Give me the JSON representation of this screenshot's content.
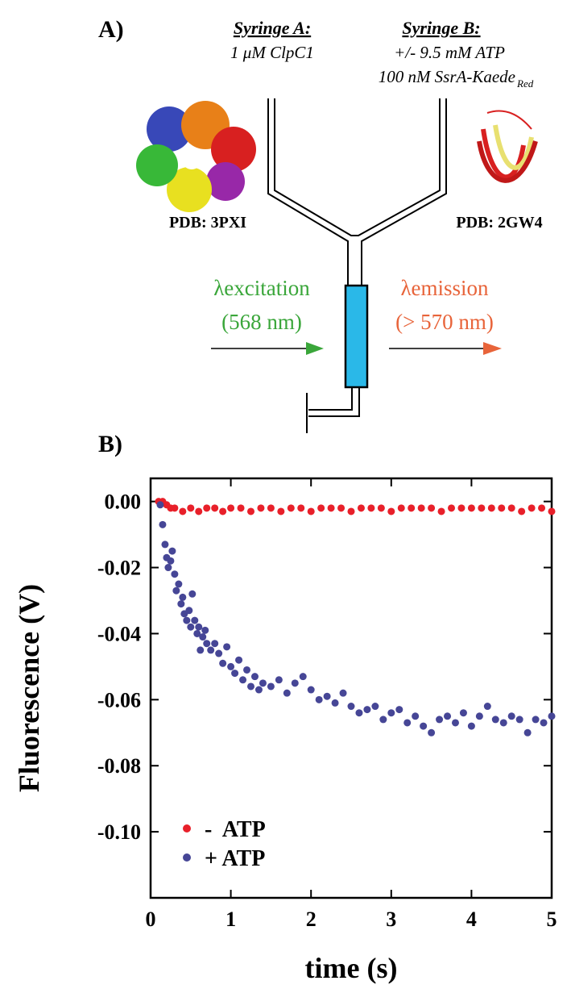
{
  "diagram": {
    "panel_a": "A)",
    "panel_b": "B)",
    "syringe_a": {
      "title": "Syringe A:",
      "line1": "1 μM ClpC1"
    },
    "syringe_b": {
      "title": "Syringe B:",
      "line1": "+/- 9.5 mM ATP",
      "line2": "100 nM SsrA-Kaede",
      "line2_sub": "Red"
    },
    "pdb_left": "PDB: 3PXI",
    "pdb_right": "PDB: 2GW4",
    "excitation": {
      "label": "λexcitation",
      "wavelength": "(568 nm)",
      "color": "#3aa63a"
    },
    "emission": {
      "label": "λemission",
      "wavelength": "(> 570 nm)",
      "color": "#e8643a"
    }
  },
  "chart_data": {
    "type": "scatter",
    "xlabel": "time (s)",
    "ylabel": "Fluorescence (V)",
    "xlim": [
      0,
      5
    ],
    "ylim": [
      -0.12,
      0.007
    ],
    "xticks": [
      0,
      1,
      2,
      3,
      4,
      5
    ],
    "yticks": [
      {
        "value": 0,
        "label": "0.00"
      },
      -0.02,
      -0.04,
      -0.06,
      -0.08,
      {
        "value": -0.1,
        "label": "-0.10"
      }
    ],
    "legend": "lower left",
    "series": [
      {
        "name": "-  ATP",
        "color": "#e8202a",
        "x": [
          0.1,
          0.15,
          0.2,
          0.25,
          0.3,
          0.4,
          0.5,
          0.6,
          0.7,
          0.8,
          0.9,
          1.0,
          1.125,
          1.25,
          1.375,
          1.5,
          1.625,
          1.75,
          1.875,
          2.0,
          2.125,
          2.25,
          2.375,
          2.5,
          2.625,
          2.75,
          2.875,
          3.0,
          3.125,
          3.25,
          3.375,
          3.5,
          3.625,
          3.75,
          3.875,
          4.0,
          4.125,
          4.25,
          4.375,
          4.5,
          4.625,
          4.75,
          4.875,
          5.0
        ],
        "values": [
          0.0,
          0.0,
          -0.001,
          -0.002,
          -0.002,
          -0.003,
          -0.002,
          -0.003,
          -0.002,
          -0.002,
          -0.003,
          -0.002,
          -0.002,
          -0.003,
          -0.002,
          -0.002,
          -0.003,
          -0.002,
          -0.002,
          -0.003,
          -0.002,
          -0.002,
          -0.002,
          -0.003,
          -0.002,
          -0.002,
          -0.002,
          -0.003,
          -0.002,
          -0.002,
          -0.002,
          -0.002,
          -0.003,
          -0.002,
          -0.002,
          -0.002,
          -0.002,
          -0.002,
          -0.002,
          -0.002,
          -0.003,
          -0.002,
          -0.002,
          -0.003
        ]
      },
      {
        "name": "+ ATP",
        "color": "#464696",
        "x": [
          0.12,
          0.15,
          0.18,
          0.2,
          0.22,
          0.25,
          0.27,
          0.3,
          0.32,
          0.35,
          0.38,
          0.4,
          0.42,
          0.45,
          0.48,
          0.5,
          0.52,
          0.55,
          0.58,
          0.6,
          0.62,
          0.65,
          0.68,
          0.7,
          0.75,
          0.8,
          0.85,
          0.9,
          0.95,
          1.0,
          1.05,
          1.1,
          1.15,
          1.2,
          1.25,
          1.3,
          1.35,
          1.4,
          1.5,
          1.6,
          1.7,
          1.8,
          1.9,
          2.0,
          2.1,
          2.2,
          2.3,
          2.4,
          2.5,
          2.6,
          2.7,
          2.8,
          2.9,
          3.0,
          3.1,
          3.2,
          3.3,
          3.4,
          3.5,
          3.6,
          3.7,
          3.8,
          3.9,
          4.0,
          4.1,
          4.2,
          4.3,
          4.4,
          4.5,
          4.6,
          4.7,
          4.8,
          4.9,
          5.0
        ],
        "values": [
          -0.001,
          -0.007,
          -0.013,
          -0.017,
          -0.02,
          -0.018,
          -0.015,
          -0.022,
          -0.027,
          -0.025,
          -0.031,
          -0.029,
          -0.034,
          -0.036,
          -0.033,
          -0.038,
          -0.028,
          -0.036,
          -0.04,
          -0.038,
          -0.045,
          -0.041,
          -0.039,
          -0.043,
          -0.045,
          -0.043,
          -0.046,
          -0.049,
          -0.044,
          -0.05,
          -0.052,
          -0.048,
          -0.054,
          -0.051,
          -0.056,
          -0.053,
          -0.057,
          -0.055,
          -0.056,
          -0.054,
          -0.058,
          -0.055,
          -0.053,
          -0.057,
          -0.06,
          -0.059,
          -0.061,
          -0.058,
          -0.062,
          -0.064,
          -0.063,
          -0.062,
          -0.066,
          -0.064,
          -0.063,
          -0.067,
          -0.065,
          -0.068,
          -0.07,
          -0.066,
          -0.065,
          -0.067,
          -0.064,
          -0.068,
          -0.065,
          -0.062,
          -0.066,
          -0.067,
          -0.065,
          -0.066,
          -0.07,
          -0.066,
          -0.067,
          -0.065
        ]
      }
    ]
  }
}
